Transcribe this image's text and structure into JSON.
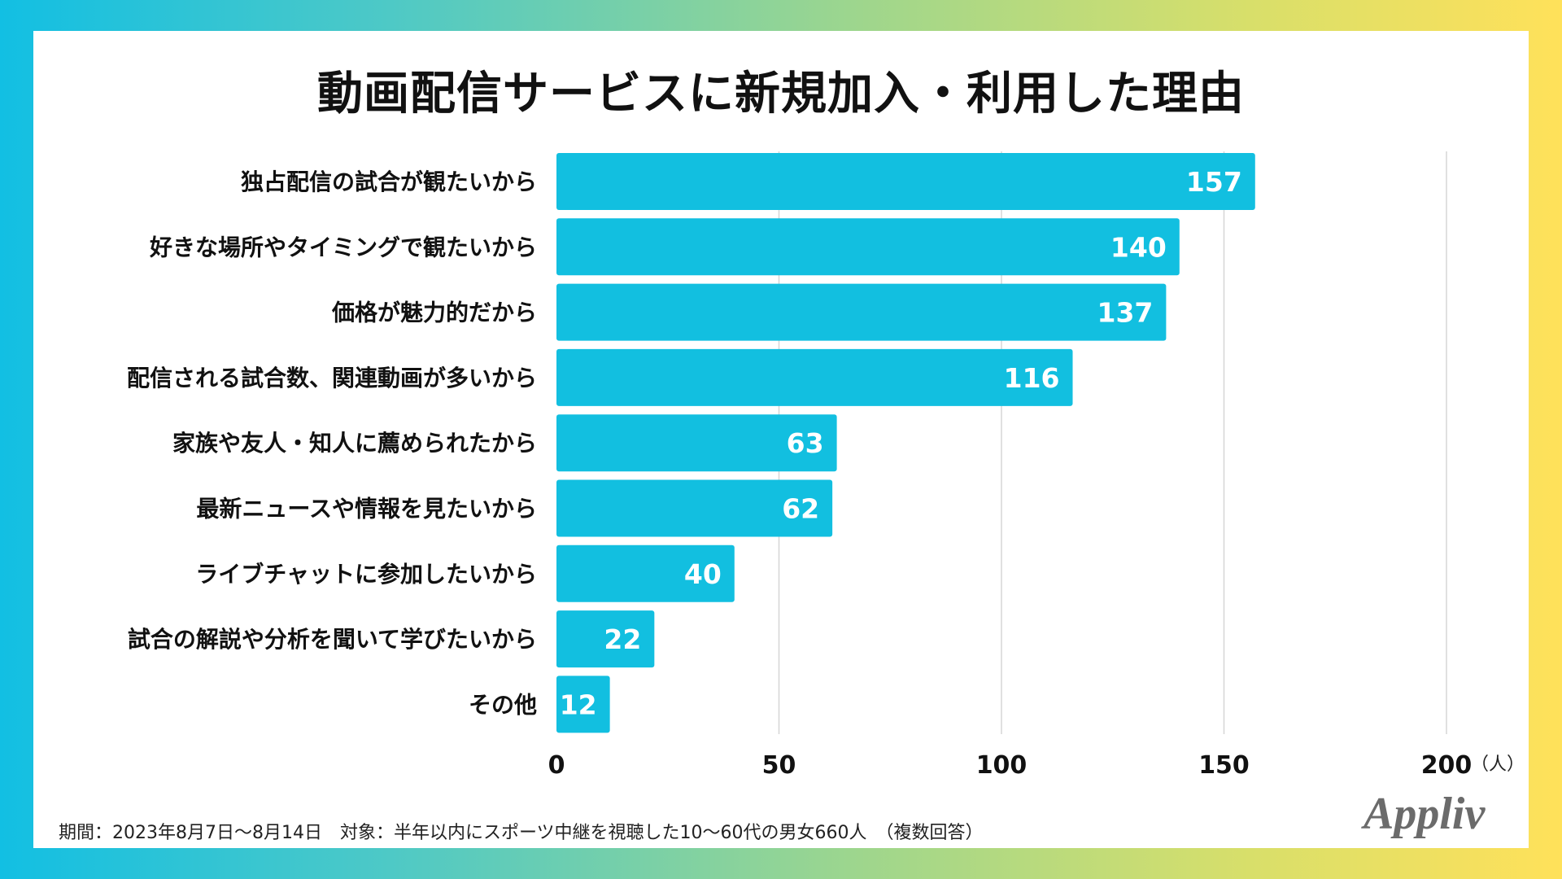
{
  "chart_data": {
    "type": "bar",
    "orientation": "horizontal",
    "title": "動画配信サービスに新規加入・利用した理由",
    "categories": [
      "独占配信の試合が観たいから",
      "好きな場所やタイミングで観たいから",
      "価格が魅力的だから",
      "配信される試合数、関連動画が多いから",
      "家族や友人・知人に薦められたから",
      "最新ニュースや情報を見たいから",
      "ライブチャットに参加したいから",
      "試合の解説や分析を聞いて学びたいから",
      "その他"
    ],
    "values": [
      157,
      140,
      137,
      116,
      63,
      62,
      40,
      22,
      12
    ],
    "xlim": [
      0,
      200
    ],
    "xticks": [
      0,
      50,
      100,
      150,
      200
    ],
    "xunit": "（人）",
    "grid": true,
    "bar_color": "#12bfe0",
    "label_color": "#ffffff"
  },
  "footer": {
    "note": "期間：2023年8月7日〜8月14日　対象：半年以内にスポーツ中継を視聴した10〜60代の男女660人　（複数回答）"
  },
  "brand": {
    "logo_text": "Appliv",
    "logo_color": "#6b6b6b"
  }
}
